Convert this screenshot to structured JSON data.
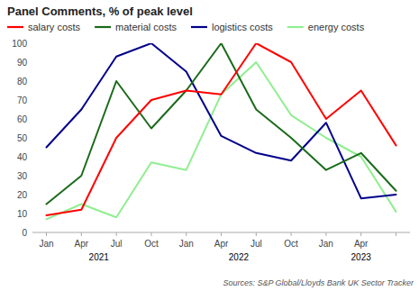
{
  "chart_data": {
    "type": "line",
    "title": "Panel Comments, % of peak level",
    "source": "Sources: S&P Global/Lloyds Bank UK Sector Tracker",
    "categories": [
      "Jan",
      "Apr",
      "Jul",
      "Oct",
      "Jan",
      "Apr",
      "Jul",
      "Oct",
      "Jan",
      "Apr",
      null
    ],
    "annotations": [
      {
        "text": "2021",
        "x": 1.5
      },
      {
        "text": "2022",
        "x": 5.5
      },
      {
        "text": "2023",
        "x": 9.0
      }
    ],
    "series": [
      {
        "name": "salary costs",
        "color": "#ff0000",
        "values": [
          9,
          12,
          50,
          70,
          75,
          73,
          100,
          90,
          60,
          75,
          46
        ]
      },
      {
        "name": "material costs",
        "color": "#1a6b1a",
        "values": [
          15,
          30,
          80,
          55,
          75,
          100,
          65,
          50,
          33,
          42,
          22
        ]
      },
      {
        "name": "logistics costs",
        "color": "#00008b",
        "values": [
          45,
          65,
          93,
          100,
          85,
          51,
          42,
          38,
          58,
          18,
          20
        ]
      },
      {
        "name": "energy costs",
        "color": "#90ee90",
        "values": [
          7,
          15,
          8,
          37,
          33,
          73,
          90,
          62,
          50,
          40,
          11
        ]
      }
    ],
    "ylim": [
      0,
      100
    ],
    "yticks": [
      0,
      10,
      20,
      30,
      40,
      50,
      60,
      70,
      80,
      90,
      100
    ],
    "grid": false,
    "legend": "top"
  }
}
